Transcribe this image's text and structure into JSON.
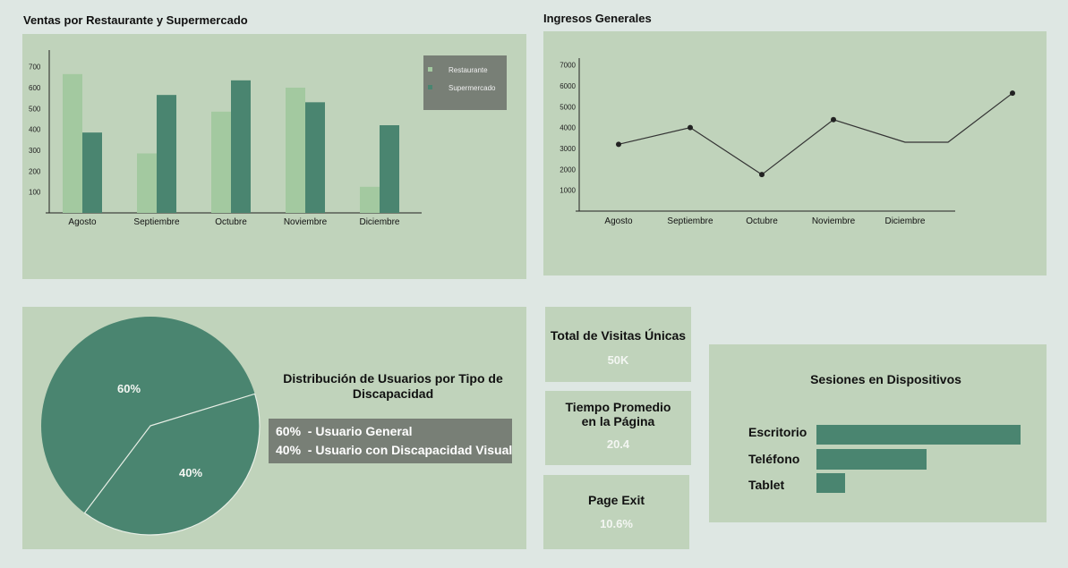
{
  "colors": {
    "background": "#dee7e3",
    "panel": "#c0d3bb",
    "restaurante": "#a3c9a0",
    "supermercado": "#4a8570",
    "legend_bg": "#787f76",
    "line": "#333333",
    "pie": "#4a8570"
  },
  "bar_chart": {
    "title": "Ventas por Restaurante y Supermercado"
  },
  "line_chart": {
    "title": "Ingresos Generales"
  },
  "pie": {
    "title_line1": "Distribución de Usuarios por Tipo de",
    "title_line2": "Discapacidad",
    "legend": [
      {
        "text": "60%  - Usuario General"
      },
      {
        "text": "40%  - Usuario con Discapacidad Visual"
      }
    ]
  },
  "kpis": [
    {
      "label_line1": "Total de Visitas Únicas",
      "label_line2": "",
      "value": "50K"
    },
    {
      "label_line1": "Tiempo Promedio",
      "label_line2": "en la Página",
      "value": "20.4"
    },
    {
      "label_line1": "Page Exit",
      "label_line2": "",
      "value": "10.6%"
    }
  ],
  "sessions": {
    "title": "Sesiones en Dispositivos",
    "items": [
      {
        "label": "Escritorio",
        "share": 1.0
      },
      {
        "label": "Teléfono",
        "share": 0.54
      },
      {
        "label": "Tablet",
        "share": 0.14
      }
    ]
  },
  "chart_data": [
    {
      "type": "bar",
      "title": "Ventas por Restaurante y Supermercado",
      "categories": [
        "Agosto",
        "Septiembre",
        "Octubre",
        "Noviembre",
        "Diciembre"
      ],
      "series": [
        {
          "name": "Restaurante",
          "values": [
            665,
            285,
            485,
            600,
            125
          ]
        },
        {
          "name": "Supermercado",
          "values": [
            385,
            565,
            635,
            530,
            420
          ]
        }
      ],
      "yticks": [
        "100",
        "200",
        "300",
        "400",
        "500",
        "600",
        "700"
      ],
      "ylim": [
        0,
        780
      ],
      "legend_position": "top-right",
      "grid": false
    },
    {
      "type": "line",
      "title": "Ingresos Generales",
      "x": [
        0,
        1,
        2,
        3,
        4,
        4.6,
        5.5
      ],
      "y": [
        3200,
        4000,
        1750,
        4380,
        3300,
        3300,
        5650
      ],
      "markers": [
        true,
        true,
        true,
        true,
        false,
        false,
        true
      ],
      "categories": [
        "Agosto",
        "Septiembre",
        "Octubre",
        "Noviembre",
        "Diciembre"
      ],
      "yticks": [
        "1000",
        "2000",
        "3000",
        "4000",
        "5000",
        "6000",
        "7000"
      ],
      "ylim": [
        0,
        7500
      ],
      "grid": false
    },
    {
      "type": "pie",
      "labels": [
        "60%",
        "40%"
      ],
      "values": [
        60,
        40
      ]
    }
  ]
}
